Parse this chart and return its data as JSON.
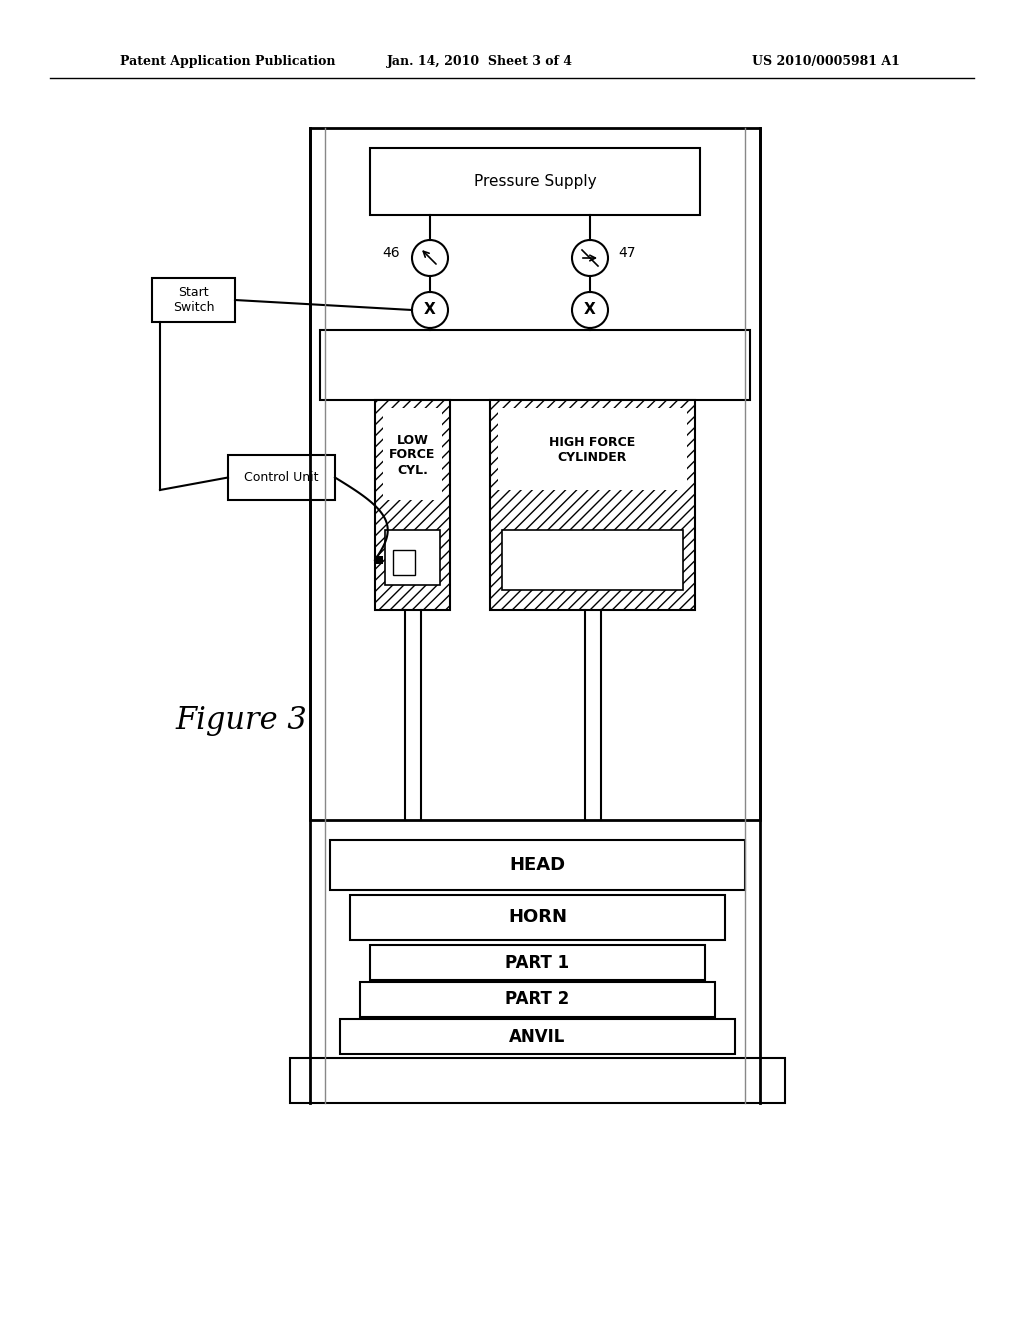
{
  "bg_color": "#ffffff",
  "header_left": "Patent Application Publication",
  "header_center": "Jan. 14, 2010  Sheet 3 of 4",
  "header_right": "US 2010/0005981 A1",
  "figure_label": "Figure 3",
  "pressure_supply_label": "Pressure Supply",
  "low_force_label": "LOW\nFORCE\nCYL.",
  "high_force_label": "HIGH FORCE\nCYLINDER",
  "start_switch_label": "Start\nSwitch",
  "control_unit_label": "Control Unit",
  "head_label": "HEAD",
  "horn_label": "HORN",
  "part1_label": "PART 1",
  "part2_label": "PART 2",
  "anvil_label": "ANVIL",
  "valve46_label": "46",
  "valve47_label": "47"
}
